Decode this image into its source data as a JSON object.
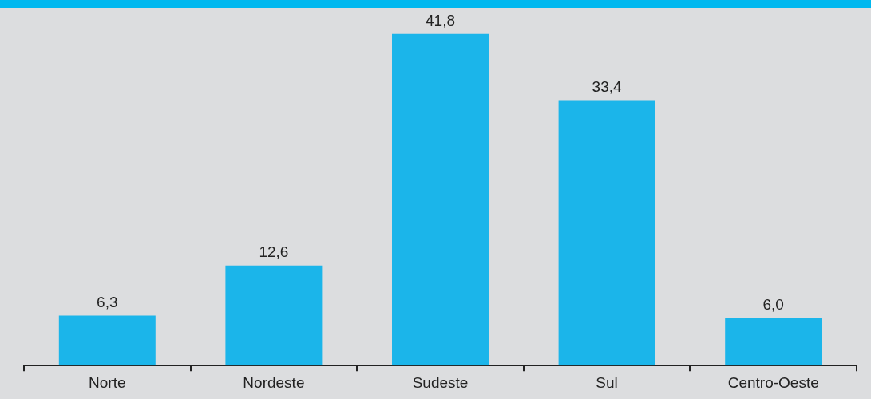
{
  "chart_data": {
    "type": "bar",
    "categories": [
      "Norte",
      "Nordeste",
      "Sudeste",
      "Sul",
      "Centro-Oeste"
    ],
    "values": [
      6.3,
      12.6,
      41.8,
      33.4,
      6.0
    ],
    "value_labels": [
      "6,3",
      "12,6",
      "41,8",
      "33,4",
      "6,0"
    ],
    "color": "#1bb5ea",
    "grid": false,
    "legend": false,
    "tick_labels": "x"
  }
}
